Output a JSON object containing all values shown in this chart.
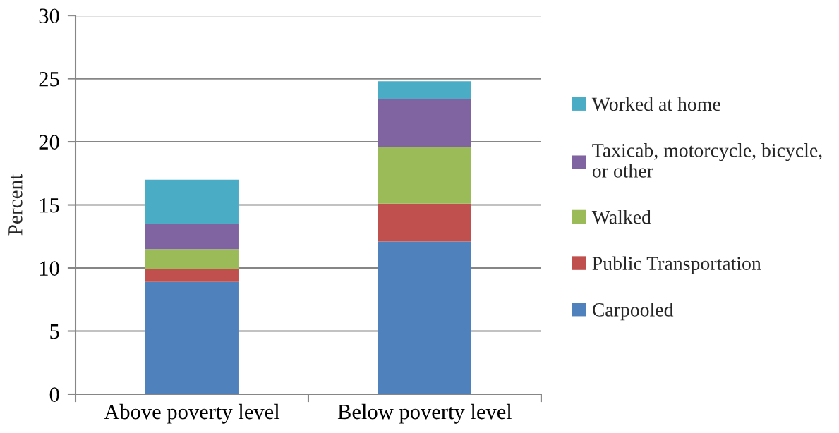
{
  "chart_data": {
    "type": "bar",
    "stacked": true,
    "ylabel": "Percent",
    "categories": [
      "Above poverty level",
      "Below poverty level"
    ],
    "series": [
      {
        "name": "Carpooled",
        "color": "#4f81bd",
        "values": [
          8.9,
          12.1
        ]
      },
      {
        "name": "Public Transportation",
        "color": "#c0504d",
        "values": [
          1.0,
          3.0
        ]
      },
      {
        "name": "Walked",
        "color": "#9bbb59",
        "values": [
          1.6,
          4.5
        ]
      },
      {
        "name": "Taxicab, motorcycle, bicycle,\nor other",
        "color": "#8064a2",
        "values": [
          2.0,
          3.8
        ]
      },
      {
        "name": "Worked at home",
        "color": "#4bacc6",
        "values": [
          3.5,
          1.4
        ]
      }
    ],
    "ylim": [
      0,
      30
    ],
    "yticks": [
      0,
      5,
      10,
      15,
      20,
      25,
      30
    ],
    "grid": "y",
    "legend": "right"
  }
}
